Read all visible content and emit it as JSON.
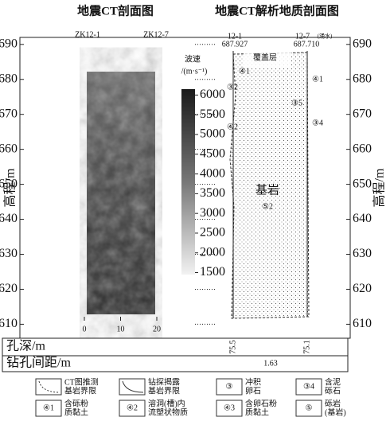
{
  "titles": [
    "地震CT剖面图",
    "地震CT解析地质剖面图"
  ],
  "chart_data": {
    "type": "heatmap",
    "y_label": "高程/m",
    "ylim": [
      606,
      692
    ],
    "yticks": [
      610,
      620,
      630,
      640,
      650,
      660,
      670,
      680,
      690
    ],
    "xlim": [
      0,
      20
    ],
    "xticks": [
      0,
      10,
      20
    ],
    "boreholes": [
      "ZK12-1",
      "ZK12-7"
    ],
    "colorbar": {
      "label": "波速",
      "unit": "/(m·s⁻¹)",
      "clim": [
        1450,
        6150
      ],
      "ticks": [
        1500,
        2000,
        2500,
        3000,
        3500,
        4000,
        4500,
        5000,
        5500,
        6000
      ]
    }
  },
  "section": {
    "holes": [
      {
        "name": "12-1",
        "elevation": "687.927",
        "note": null
      },
      {
        "name": "12-7",
        "elevation": "687.710",
        "note": "(涌水)"
      }
    ],
    "cover": "覆盖层",
    "rock": "基岩",
    "rock_code": "⑤2",
    "codes": [
      "④1",
      "③2",
      "④2",
      "③4",
      "④1",
      "③5"
    ]
  },
  "table": {
    "rows": [
      "孔深/m",
      "钻孔间距/m"
    ],
    "depths": [
      "75.5",
      "75.1"
    ],
    "spacing": "1.63"
  },
  "legend": [
    {
      "symbol": null,
      "text": [
        "CT图推测",
        "基岩界限"
      ]
    },
    {
      "symbol": null,
      "text": [
        "钻探揭露",
        "基岩界限"
      ]
    },
    {
      "symbol": "③",
      "text": [
        "冲积",
        "卵石"
      ]
    },
    {
      "symbol": "③4",
      "text": [
        "含泥",
        "砾石"
      ]
    },
    {
      "symbol": "④1",
      "text": [
        "含砾粉",
        "质黏土"
      ]
    },
    {
      "symbol": "④2",
      "text": [
        "溶洞(槽)内",
        "流塑状物质"
      ]
    },
    {
      "symbol": "④3",
      "text": [
        "含卵石粉",
        "质黏土"
      ]
    },
    {
      "symbol": "⑤",
      "text": [
        "砾岩",
        "(基岩)"
      ]
    }
  ]
}
